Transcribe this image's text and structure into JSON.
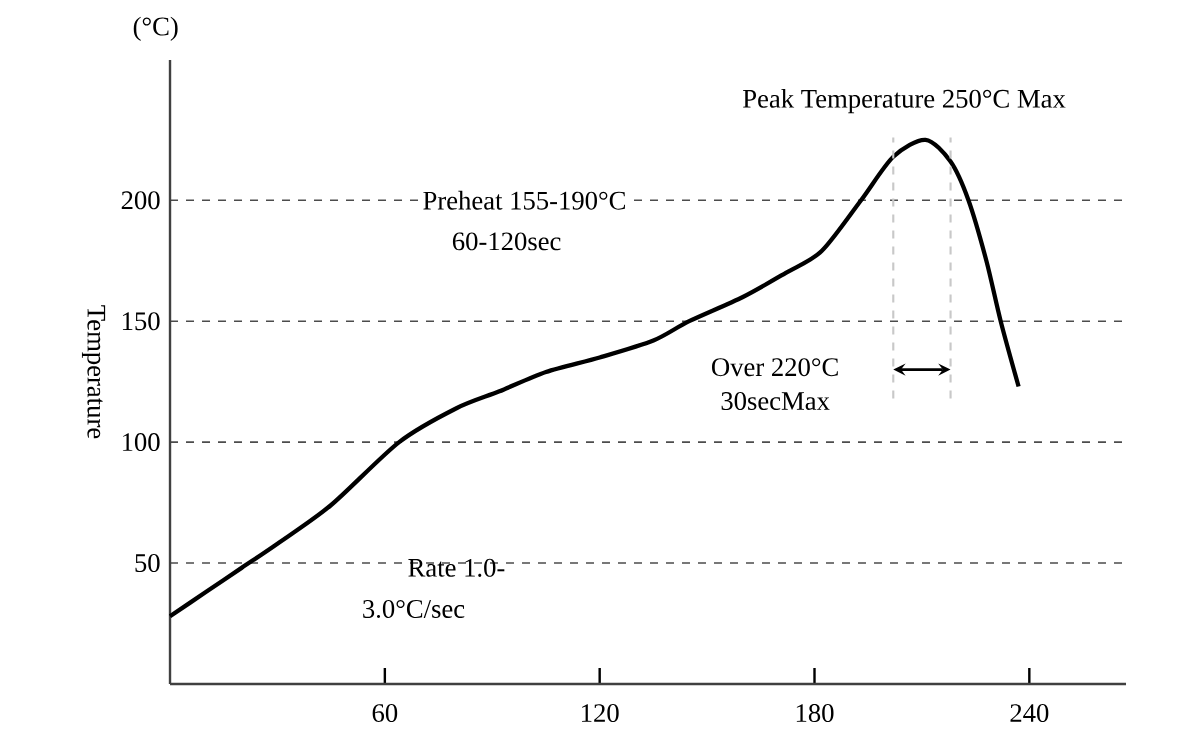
{
  "chart_data": {
    "type": "line",
    "ylabel": "Temperature",
    "x": [
      0,
      10,
      20,
      30,
      45,
      64,
      80,
      92,
      105,
      120,
      135,
      145,
      160,
      172,
      182,
      193,
      202,
      211,
      218,
      223,
      228,
      232,
      237
    ],
    "series": [
      {
        "color": "#000000",
        "values": [
          28,
          38,
          48,
          58,
          74,
          100,
          114,
          121,
          129,
          135,
          142,
          150,
          160,
          170,
          179,
          200,
          218,
          225,
          216,
          200,
          175,
          150,
          123
        ]
      }
    ],
    "xlim": [
      0,
      267
    ],
    "ylim": [
      0,
      258
    ],
    "xticks": [
      60,
      120,
      180,
      240
    ],
    "yticks": [
      50,
      100,
      150,
      200
    ],
    "grid": "y",
    "marker": "none",
    "line_style": "solid",
    "ref_lines": [
      {
        "axis": "x",
        "value": 202,
        "color": "#c8c8c8",
        "line_style": "dashed"
      },
      {
        "axis": "x",
        "value": 218,
        "color": "#c8c8c8",
        "line_style": "dashed"
      }
    ],
    "annotations": [
      "(°C)",
      "Peak Temperature    250°C Max",
      "Preheat 155-190°C",
      "60-120sec",
      "Over 220°C",
      "30secMax",
      "Rate 1.0-",
      "3.0°C/sec"
    ]
  }
}
